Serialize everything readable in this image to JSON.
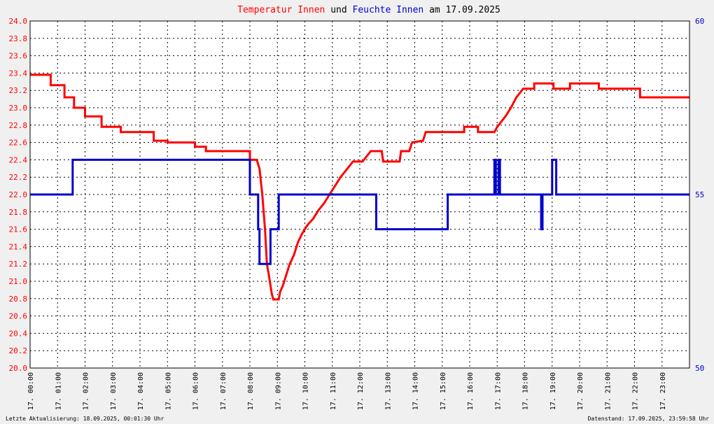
{
  "title": {
    "part1": "Temperatur Innen",
    "part2": " und ",
    "part3": "Feuchte Innen",
    "part4": " am 17.09.2025",
    "color1": "#ff0000",
    "color2": "#0000cc",
    "color_text": "#000000"
  },
  "footer": {
    "left": "Letzte Aktualisierung: 18.09.2025, 00:01:30 Uhr",
    "right": "Datenstand: 17.09.2025, 23:59:58 Uhr"
  },
  "chart_data": {
    "type": "line",
    "x_unit": "hours",
    "xlim": [
      0,
      24
    ],
    "x_ticks": [
      "17. 00:00",
      "17. 01:00",
      "17. 02:00",
      "17. 03:00",
      "17. 04:00",
      "17. 05:00",
      "17. 06:00",
      "17. 07:00",
      "17. 08:00",
      "17. 09:00",
      "17. 10:00",
      "17. 11:00",
      "17. 12:00",
      "17. 13:00",
      "17. 14:00",
      "17. 15:00",
      "17. 16:00",
      "17. 17:00",
      "17. 18:00",
      "17. 19:00",
      "17. 20:00",
      "17. 21:00",
      "17. 22:00",
      "17. 23:00"
    ],
    "y_left": {
      "lim": [
        20.0,
        24.0
      ],
      "ticks": [
        "20.0",
        "20.2",
        "20.4",
        "20.6",
        "20.8",
        "21.0",
        "21.2",
        "21.4",
        "21.6",
        "21.8",
        "22.0",
        "22.2",
        "22.4",
        "22.6",
        "22.8",
        "23.0",
        "23.2",
        "23.4",
        "23.6",
        "23.8",
        "24.0"
      ],
      "color": "#ff0000"
    },
    "y_right": {
      "lim": [
        50,
        60
      ],
      "ticks": [
        "50",
        "55",
        "60"
      ],
      "color": "#0000cc"
    },
    "grid": true,
    "series": [
      {
        "name": "Temperatur Innen",
        "axis": "left",
        "color": "#ff0000",
        "points": [
          [
            0.0,
            23.38
          ],
          [
            0.75,
            23.38
          ],
          [
            0.75,
            23.26
          ],
          [
            1.25,
            23.26
          ],
          [
            1.25,
            23.12
          ],
          [
            1.6,
            23.12
          ],
          [
            1.6,
            23.0
          ],
          [
            2.0,
            23.0
          ],
          [
            2.0,
            22.9
          ],
          [
            2.6,
            22.9
          ],
          [
            2.6,
            22.78
          ],
          [
            3.3,
            22.78
          ],
          [
            3.3,
            22.72
          ],
          [
            4.5,
            22.72
          ],
          [
            4.5,
            22.62
          ],
          [
            5.0,
            22.62
          ],
          [
            5.0,
            22.6
          ],
          [
            6.0,
            22.6
          ],
          [
            6.0,
            22.55
          ],
          [
            6.4,
            22.55
          ],
          [
            6.4,
            22.5
          ],
          [
            8.0,
            22.5
          ],
          [
            8.0,
            22.4
          ],
          [
            8.25,
            22.4
          ],
          [
            8.35,
            22.3
          ],
          [
            8.45,
            22.0
          ],
          [
            8.55,
            21.6
          ],
          [
            8.62,
            21.2
          ],
          [
            8.7,
            21.05
          ],
          [
            8.8,
            20.85
          ],
          [
            8.85,
            20.79
          ],
          [
            9.05,
            20.79
          ],
          [
            9.1,
            20.88
          ],
          [
            9.2,
            20.95
          ],
          [
            9.3,
            21.05
          ],
          [
            9.45,
            21.2
          ],
          [
            9.6,
            21.3
          ],
          [
            9.75,
            21.45
          ],
          [
            9.9,
            21.55
          ],
          [
            10.1,
            21.65
          ],
          [
            10.3,
            21.72
          ],
          [
            10.5,
            21.82
          ],
          [
            10.7,
            21.9
          ],
          [
            10.9,
            22.0
          ],
          [
            11.1,
            22.1
          ],
          [
            11.3,
            22.2
          ],
          [
            11.5,
            22.28
          ],
          [
            11.75,
            22.38
          ],
          [
            12.1,
            22.38
          ],
          [
            12.4,
            22.5
          ],
          [
            12.8,
            22.5
          ],
          [
            12.85,
            22.38
          ],
          [
            13.45,
            22.38
          ],
          [
            13.5,
            22.5
          ],
          [
            13.8,
            22.5
          ],
          [
            13.9,
            22.6
          ],
          [
            14.3,
            22.62
          ],
          [
            14.4,
            22.72
          ],
          [
            15.8,
            22.72
          ],
          [
            15.8,
            22.78
          ],
          [
            16.3,
            22.78
          ],
          [
            16.3,
            22.72
          ],
          [
            16.9,
            22.72
          ],
          [
            17.0,
            22.78
          ],
          [
            17.1,
            22.82
          ],
          [
            17.3,
            22.9
          ],
          [
            17.5,
            23.0
          ],
          [
            17.7,
            23.12
          ],
          [
            17.95,
            23.22
          ],
          [
            18.35,
            23.22
          ],
          [
            18.35,
            23.28
          ],
          [
            19.05,
            23.28
          ],
          [
            19.05,
            23.22
          ],
          [
            19.65,
            23.22
          ],
          [
            19.65,
            23.28
          ],
          [
            20.7,
            23.28
          ],
          [
            20.7,
            23.22
          ],
          [
            22.2,
            23.22
          ],
          [
            22.2,
            23.12
          ],
          [
            24.0,
            23.12
          ]
        ]
      },
      {
        "name": "Feuchte Innen",
        "axis": "right",
        "color": "#0000cc",
        "points": [
          [
            0.0,
            55.0
          ],
          [
            1.55,
            55.0
          ],
          [
            1.55,
            56.0
          ],
          [
            8.0,
            56.0
          ],
          [
            8.0,
            55.0
          ],
          [
            8.3,
            55.0
          ],
          [
            8.3,
            54.0
          ],
          [
            8.35,
            54.0
          ],
          [
            8.35,
            53.0
          ],
          [
            8.75,
            53.0
          ],
          [
            8.75,
            54.0
          ],
          [
            9.05,
            54.0
          ],
          [
            9.05,
            55.0
          ],
          [
            12.6,
            55.0
          ],
          [
            12.6,
            54.0
          ],
          [
            15.2,
            54.0
          ],
          [
            15.2,
            55.0
          ],
          [
            16.9,
            55.0
          ],
          [
            16.9,
            56.0
          ],
          [
            16.95,
            56.0
          ],
          [
            16.95,
            55.0
          ],
          [
            17.05,
            55.0
          ],
          [
            17.05,
            56.0
          ],
          [
            17.1,
            56.0
          ],
          [
            17.1,
            55.0
          ],
          [
            18.6,
            55.0
          ],
          [
            18.6,
            54.0
          ],
          [
            18.65,
            54.0
          ],
          [
            18.65,
            55.0
          ],
          [
            19.0,
            55.0
          ],
          [
            19.0,
            56.0
          ],
          [
            19.15,
            56.0
          ],
          [
            19.15,
            55.0
          ],
          [
            24.0,
            55.0
          ]
        ]
      }
    ]
  }
}
